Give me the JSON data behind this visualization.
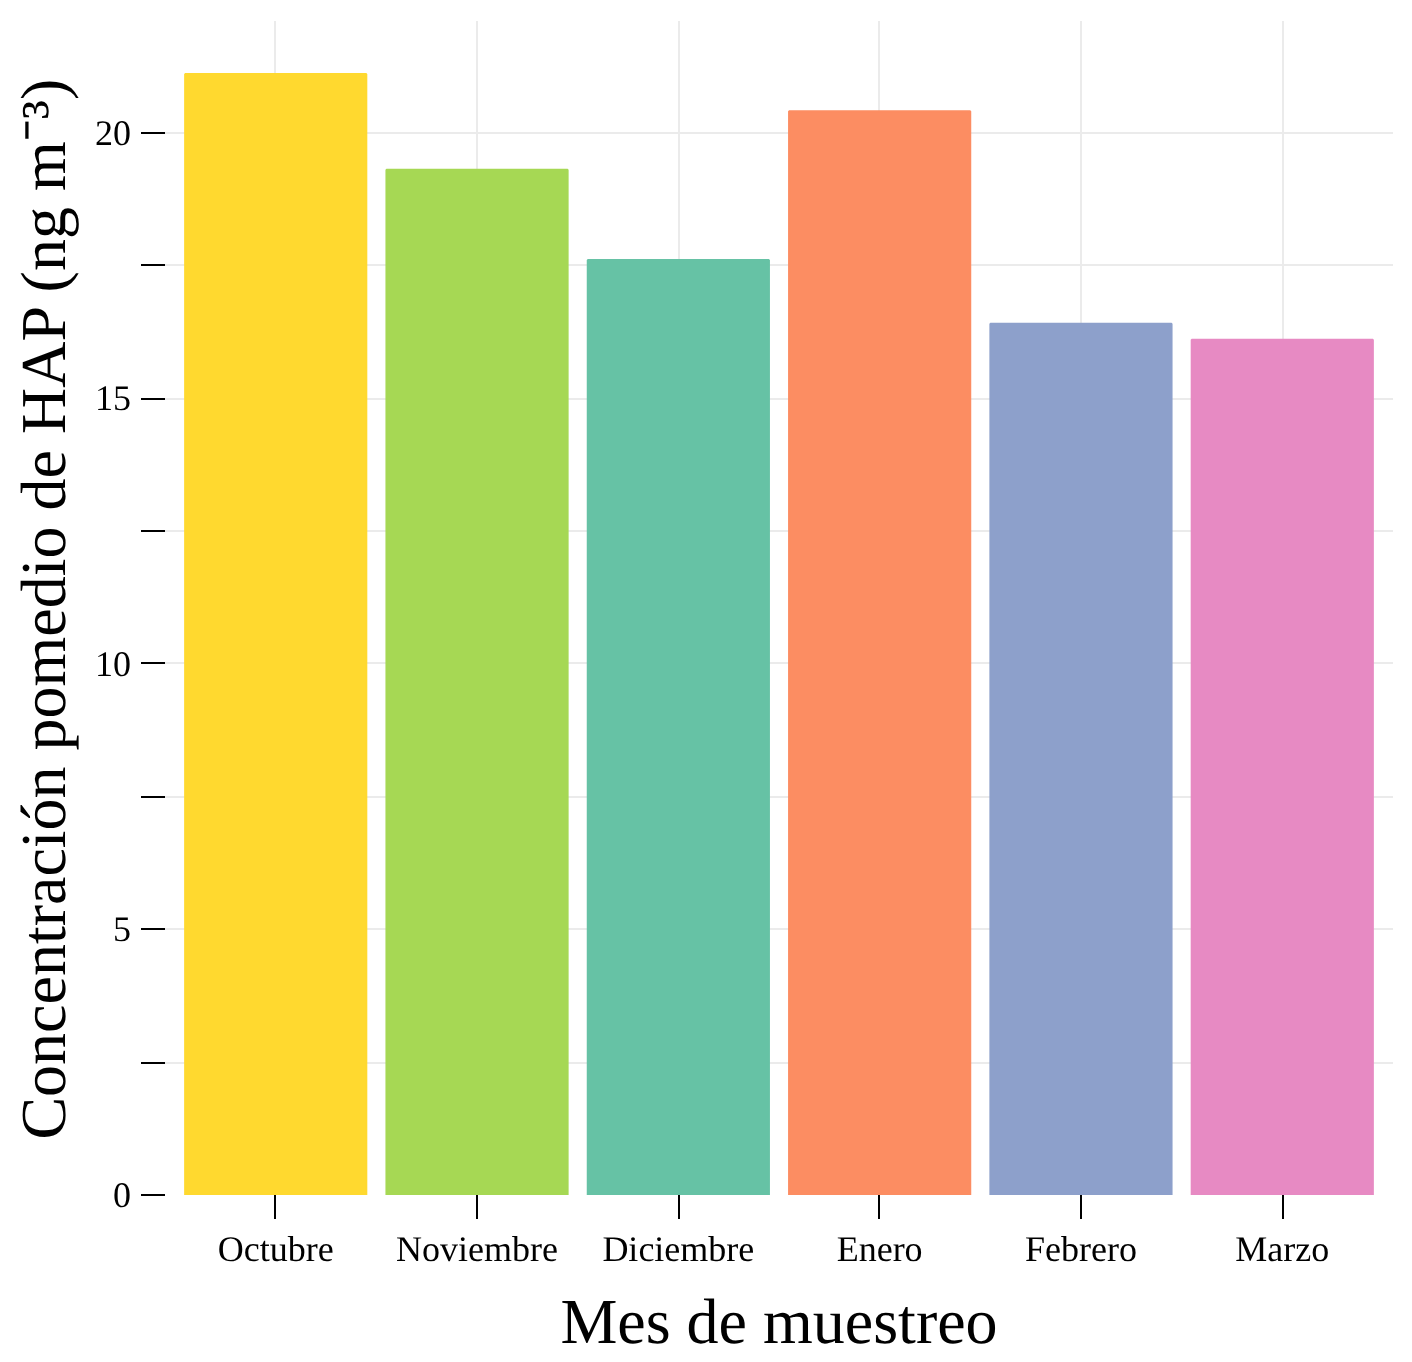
{
  "chart_data": {
    "type": "bar",
    "xlabel": "Mes de muestreo",
    "ylabel": "Concentración pomedio de HAP (ng m⁻³)",
    "categories": [
      "Octubre",
      "Noviembre",
      "Diciembre",
      "Enero",
      "Febrero",
      "Marzo"
    ],
    "values": [
      21.1,
      19.3,
      17.6,
      20.4,
      16.4,
      16.1
    ],
    "colors": [
      "#ffd92f",
      "#a6d854",
      "#66c2a5",
      "#fc8d62",
      "#8da0cb",
      "#e78ac3"
    ],
    "ylim": [
      0,
      22.1
    ],
    "yticks": [
      0,
      {
        "value": 2.5,
        "label": null
      },
      5,
      {
        "value": 7.5,
        "label": null
      },
      10,
      {
        "value": 12.5,
        "label": null
      },
      15,
      {
        "value": 17.5,
        "label": null
      },
      20
    ],
    "grid": true
  }
}
